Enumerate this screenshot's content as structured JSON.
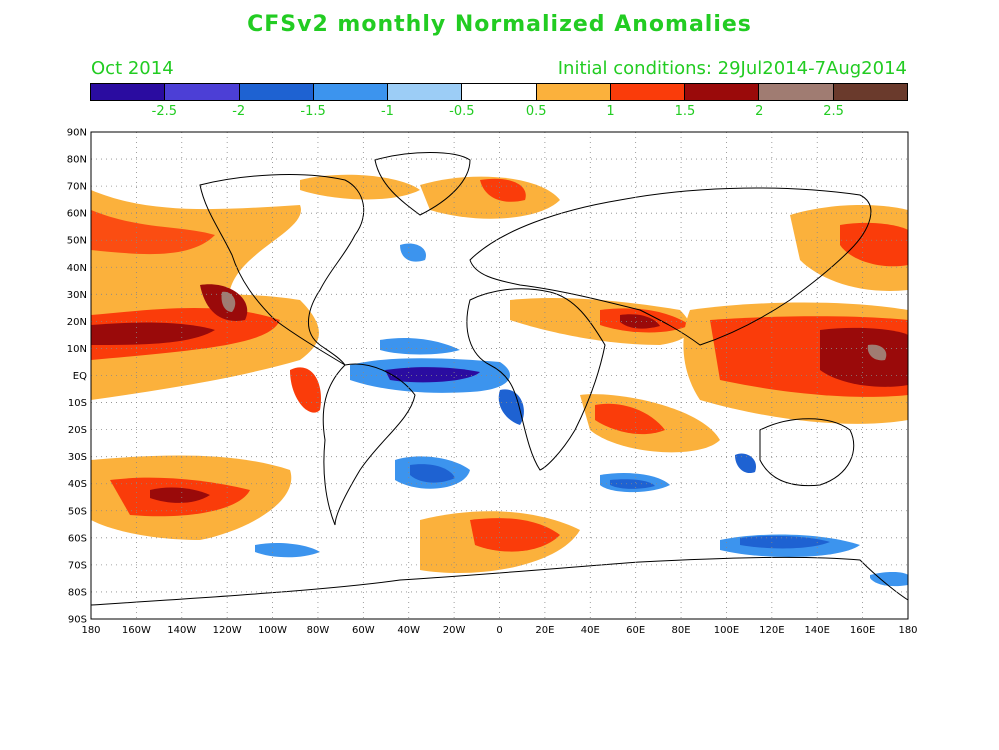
{
  "header": {
    "title": "CFSv2 monthly Normalized Anomalies",
    "month": "Oct 2014",
    "initial_conditions": "Initial conditions: 29Jul2014-7Aug2014"
  },
  "colorbar": {
    "colors": [
      "#2a0ca0",
      "#4c3fd6",
      "#1e62d2",
      "#3c94ee",
      "#9ccdf6",
      "#ffffff",
      "#fbb13c",
      "#fa3c0a",
      "#9a0a0a",
      "#a07c72",
      "#6a3a2c"
    ],
    "ticks": [
      "-2.5",
      "-2",
      "-1.5",
      "-1",
      "-0.5",
      "0.5",
      "1",
      "1.5",
      "2",
      "2.5"
    ]
  },
  "axes": {
    "lat_labels": [
      "90N",
      "80N",
      "70N",
      "60N",
      "50N",
      "40N",
      "30N",
      "20N",
      "10N",
      "EQ",
      "10S",
      "20S",
      "30S",
      "40S",
      "50S",
      "60S",
      "70S",
      "80S",
      "90S"
    ],
    "lon_labels": [
      "180",
      "160W",
      "140W",
      "120W",
      "100W",
      "80W",
      "60W",
      "40W",
      "20W",
      "0",
      "20E",
      "40E",
      "60E",
      "80E",
      "100E",
      "120E",
      "140E",
      "160E",
      "180"
    ]
  }
}
